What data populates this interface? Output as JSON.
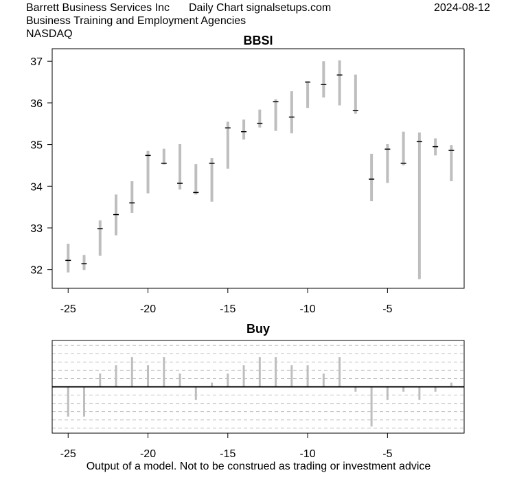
{
  "header": {
    "company": "Barrett Business Services Inc",
    "source": "Daily Chart signalsetups.com",
    "date": "2024-08-12",
    "industry": "Business Training and Employment Agencies",
    "exchange": "NASDAQ"
  },
  "footer": "Output of a model. Not to be construed as trading or investment advice",
  "chart_data": [
    {
      "type": "ohlc",
      "title": "BBSI",
      "xlim": [
        -26,
        -0.2
      ],
      "ylim": [
        31.55,
        37.3
      ],
      "x_ticks": [
        -25,
        -20,
        -15,
        -10,
        -5
      ],
      "y_ticks": [
        32,
        33,
        34,
        35,
        36,
        37
      ],
      "colors": {
        "range": "#bebebe",
        "tick": "#000000"
      },
      "bars": [
        {
          "x": -25,
          "low": 31.93,
          "high": 32.62,
          "open": 32.22,
          "close": 32.22
        },
        {
          "x": -24,
          "low": 31.99,
          "high": 32.35,
          "open": 32.14,
          "close": 32.14
        },
        {
          "x": -23,
          "low": 32.33,
          "high": 33.18,
          "open": 32.98,
          "close": 32.98
        },
        {
          "x": -22,
          "low": 32.82,
          "high": 33.8,
          "open": 33.32,
          "close": 33.32
        },
        {
          "x": -21,
          "low": 33.36,
          "high": 34.12,
          "open": 33.6,
          "close": 33.6
        },
        {
          "x": -20,
          "low": 33.83,
          "high": 34.85,
          "open": 34.74,
          "close": 34.74
        },
        {
          "x": -19,
          "low": 34.52,
          "high": 34.9,
          "open": 34.55,
          "close": 34.55
        },
        {
          "x": -18,
          "low": 33.92,
          "high": 35.01,
          "open": 34.07,
          "close": 34.07
        },
        {
          "x": -17,
          "low": 33.8,
          "high": 34.53,
          "open": 33.85,
          "close": 33.85
        },
        {
          "x": -16,
          "low": 33.63,
          "high": 34.68,
          "open": 34.55,
          "close": 34.55
        },
        {
          "x": -15,
          "low": 34.42,
          "high": 35.55,
          "open": 35.4,
          "close": 35.4
        },
        {
          "x": -14,
          "low": 35.12,
          "high": 35.6,
          "open": 35.31,
          "close": 35.31
        },
        {
          "x": -13,
          "low": 35.41,
          "high": 35.84,
          "open": 35.51,
          "close": 35.51
        },
        {
          "x": -12,
          "low": 35.33,
          "high": 36.09,
          "open": 36.03,
          "close": 36.03
        },
        {
          "x": -11,
          "low": 35.27,
          "high": 36.28,
          "open": 35.66,
          "close": 35.66
        },
        {
          "x": -10,
          "low": 35.88,
          "high": 36.52,
          "open": 36.5,
          "close": 36.5
        },
        {
          "x": -9,
          "low": 36.13,
          "high": 37.0,
          "open": 36.44,
          "close": 36.44
        },
        {
          "x": -8,
          "low": 35.94,
          "high": 37.02,
          "open": 36.67,
          "close": 36.67
        },
        {
          "x": -7,
          "low": 35.74,
          "high": 36.68,
          "open": 35.82,
          "close": 35.82
        },
        {
          "x": -6,
          "low": 33.64,
          "high": 34.78,
          "open": 34.17,
          "close": 34.17
        },
        {
          "x": -5,
          "low": 34.08,
          "high": 35.01,
          "open": 34.89,
          "close": 34.89
        },
        {
          "x": -4,
          "low": 34.5,
          "high": 35.31,
          "open": 34.55,
          "close": 34.55
        },
        {
          "x": -3,
          "low": 31.77,
          "high": 35.29,
          "open": 35.07,
          "close": 35.07
        },
        {
          "x": -2,
          "low": 34.74,
          "high": 35.15,
          "open": 34.95,
          "close": 34.95
        },
        {
          "x": -1,
          "low": 34.12,
          "high": 34.99,
          "open": 34.86,
          "close": 34.86
        }
      ]
    },
    {
      "type": "bar",
      "title": "Buy",
      "xlim": [
        -26,
        -0.2
      ],
      "ylim": [
        -5.6,
        5.6
      ],
      "x_ticks": [
        -25,
        -20,
        -15,
        -10,
        -5
      ],
      "gridlines": [
        -5,
        -4,
        -3,
        -2,
        -1,
        1,
        2,
        3,
        4,
        5
      ],
      "zero_line": true,
      "colors": {
        "bar": "#bebebe",
        "grid": "#bebebe",
        "zero": "#000000"
      },
      "x": [
        -25,
        -24,
        -23,
        -22,
        -21,
        -20,
        -19,
        -18,
        -17,
        -16,
        -15,
        -14,
        -13,
        -12,
        -11,
        -10,
        -9,
        -8,
        -7,
        -6,
        -5,
        -4,
        -3,
        -2,
        -1
      ],
      "values": [
        -3.6,
        -3.6,
        1.6,
        2.6,
        3.6,
        2.6,
        3.6,
        1.6,
        -1.6,
        0.5,
        1.6,
        2.6,
        3.6,
        3.6,
        2.6,
        2.6,
        1.6,
        3.6,
        -0.6,
        -4.8,
        -1.6,
        -0.6,
        -1.6,
        -0.6,
        0.5
      ]
    }
  ]
}
